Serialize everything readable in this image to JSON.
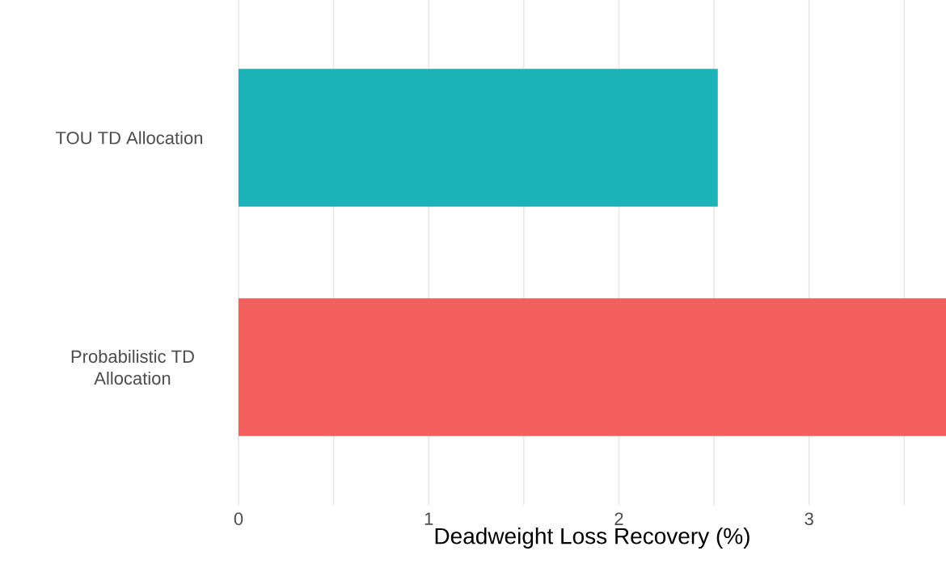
{
  "chart_data": {
    "type": "bar",
    "orientation": "horizontal",
    "categories": [
      "TOU TD Allocation",
      "Probabilistic TD Allocation"
    ],
    "values": [
      2.52,
      3.72
    ],
    "colors": [
      "#1bb3b8",
      "#f25f5c"
    ],
    "xlabel": "Deadweight Loss Recovery (%)",
    "xlim": [
      0,
      3.72
    ],
    "xticks": [
      0,
      {
        "value": 0.5,
        "label": null
      },
      1,
      {
        "value": 1.5,
        "label": null
      },
      2,
      {
        "value": 2.5,
        "label": null
      },
      3,
      {
        "value": 3.5,
        "label": null
      }
    ],
    "grid": "x"
  }
}
